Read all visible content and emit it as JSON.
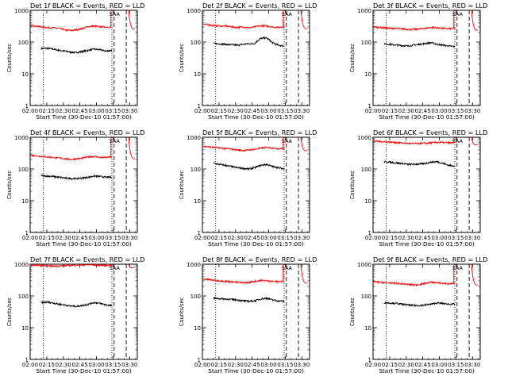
{
  "colors": {
    "events": "#000000",
    "lld": "#ff0000",
    "axes": "#000000",
    "background": "#ffffff"
  },
  "chart_data": [
    {
      "type": "line",
      "title": "Det 1f BLACK = Events, RED = LLD",
      "xlabel": "Start Time (30-Dec-10 01:57:00)",
      "ylabel": "Counts/sec",
      "x_ticks": [
        "02:00",
        "02:15",
        "02:30",
        "02:45",
        "03:00",
        "03:15",
        "03:30"
      ],
      "y_ticks": [
        "1",
        "10",
        "100",
        "1000"
      ],
      "yscale": "log",
      "ylim": [
        1,
        1000
      ],
      "xlim": [
        "02:00",
        "03:37"
      ],
      "annotation": "SAA",
      "dotted_markers": [
        "02:12",
        "03:14"
      ],
      "dashed_markers": [
        "03:16",
        "03:27"
      ],
      "series": [
        {
          "name": "Events",
          "color": "black",
          "values_start": "02:10",
          "values_end": "03:14",
          "values": [
            62,
            64,
            60,
            55,
            52,
            48,
            47,
            50,
            55,
            60,
            57,
            52,
            55
          ]
        },
        {
          "name": "LLD",
          "color": "red",
          "values_start": "02:00",
          "values_end": "03:14",
          "values": [
            330,
            320,
            300,
            285,
            280,
            270,
            240,
            230,
            245,
            270,
            310,
            320,
            300,
            300,
            290
          ]
        }
      ]
    },
    {
      "type": "line",
      "title": "Det 2f BLACK = Events, RED = LLD",
      "xlabel": "Start Time (30-Dec-10 01:57:00)",
      "ylabel": "Counts/sec",
      "x_ticks": [
        "02:00",
        "02:15",
        "02:30",
        "02:45",
        "03:00",
        "03:15",
        "03:30"
      ],
      "y_ticks": [
        "1",
        "10",
        "100",
        "1000"
      ],
      "yscale": "log",
      "ylim": [
        1,
        1000
      ],
      "xlim": [
        "02:00",
        "03:37"
      ],
      "annotation": "SAA",
      "dotted_markers": [
        "02:12",
        "03:14"
      ],
      "dashed_markers": [
        "03:16",
        "03:27"
      ],
      "series": [
        {
          "name": "Events",
          "color": "black",
          "values_start": "02:10",
          "values_end": "03:14",
          "values": [
            90,
            88,
            85,
            82,
            80,
            85,
            88,
            90,
            130,
            135,
            95,
            80,
            75
          ]
        },
        {
          "name": "LLD",
          "color": "red",
          "values_start": "02:00",
          "values_end": "03:14",
          "values": [
            360,
            350,
            330,
            320,
            320,
            300,
            290,
            300,
            280,
            300,
            330,
            320,
            300,
            290,
            300
          ]
        }
      ]
    },
    {
      "type": "line",
      "title": "Det 3f BLACK = Events, RED = LLD",
      "xlabel": "Start Time (30-Dec-10 01:57:00)",
      "ylabel": "Counts/sec",
      "x_ticks": [
        "02:00",
        "02:15",
        "02:30",
        "02:45",
        "03:00",
        "03:15",
        "03:30"
      ],
      "y_ticks": [
        "1",
        "10",
        "100",
        "1000"
      ],
      "yscale": "log",
      "ylim": [
        1,
        1000
      ],
      "xlim": [
        "02:00",
        "03:37"
      ],
      "annotation": "SAA",
      "dotted_markers": [
        "02:12",
        "03:14"
      ],
      "dashed_markers": [
        "03:16",
        "03:27"
      ],
      "series": [
        {
          "name": "Events",
          "color": "black",
          "values_start": "02:10",
          "values_end": "03:14",
          "values": [
            88,
            85,
            80,
            78,
            75,
            80,
            85,
            90,
            95,
            85,
            80,
            75,
            72
          ]
        },
        {
          "name": "LLD",
          "color": "red",
          "values_start": "02:00",
          "values_end": "03:14",
          "values": [
            300,
            290,
            280,
            270,
            270,
            260,
            250,
            250,
            260,
            270,
            290,
            280,
            270,
            260,
            270
          ]
        }
      ]
    },
    {
      "type": "line",
      "title": "Det 4f BLACK = Events, RED = LLD",
      "xlabel": "Start Time (30-Dec-10 01:57:00)",
      "ylabel": "Counts/sec",
      "x_ticks": [
        "02:00",
        "02:15",
        "02:30",
        "02:45",
        "03:00",
        "03:15",
        "03:30"
      ],
      "y_ticks": [
        "1",
        "10",
        "100",
        "1000"
      ],
      "yscale": "log",
      "ylim": [
        1,
        1000
      ],
      "xlim": [
        "02:00",
        "03:37"
      ],
      "annotation": "SAA",
      "dotted_markers": [
        "02:12",
        "03:14"
      ],
      "dashed_markers": [
        "03:16",
        "03:27"
      ],
      "series": [
        {
          "name": "Events",
          "color": "black",
          "values_start": "02:10",
          "values_end": "03:14",
          "values": [
            62,
            60,
            58,
            55,
            52,
            50,
            50,
            52,
            55,
            60,
            58,
            55,
            55
          ]
        },
        {
          "name": "LLD",
          "color": "red",
          "values_start": "02:00",
          "values_end": "03:14",
          "values": [
            270,
            260,
            250,
            240,
            230,
            220,
            210,
            200,
            210,
            220,
            240,
            250,
            230,
            230,
            240
          ]
        }
      ]
    },
    {
      "type": "line",
      "title": "Det 5f BLACK = Events, RED = LLD",
      "xlabel": "Start Time (30-Dec-10 01:57:00)",
      "ylabel": "Counts/sec",
      "x_ticks": [
        "02:00",
        "02:15",
        "02:30",
        "02:45",
        "03:00",
        "03:15",
        "03:30"
      ],
      "y_ticks": [
        "1",
        "10",
        "100",
        "1000"
      ],
      "yscale": "log",
      "ylim": [
        1,
        1000
      ],
      "xlim": [
        "02:00",
        "03:37"
      ],
      "annotation": "SAA",
      "dotted_markers": [
        "02:12",
        "03:14"
      ],
      "dashed_markers": [
        "03:16",
        "03:27"
      ],
      "series": [
        {
          "name": "Events",
          "color": "black",
          "values_start": "02:10",
          "values_end": "03:14",
          "values": [
            150,
            140,
            130,
            120,
            110,
            105,
            100,
            110,
            130,
            140,
            120,
            110,
            100
          ]
        },
        {
          "name": "LLD",
          "color": "red",
          "values_start": "02:00",
          "values_end": "03:14",
          "values": [
            520,
            500,
            480,
            460,
            440,
            420,
            400,
            380,
            400,
            420,
            450,
            480,
            460,
            440,
            430
          ]
        }
      ]
    },
    {
      "type": "line",
      "title": "Det 6f BLACK = Events, RED = LLD",
      "xlabel": "Start Time (30-Dec-10 01:57:00)",
      "ylabel": "Counts/sec",
      "x_ticks": [
        "02:00",
        "02:15",
        "02:30",
        "02:45",
        "03:00",
        "03:15",
        "03:30"
      ],
      "y_ticks": [
        "1",
        "10",
        "100",
        "1000"
      ],
      "yscale": "log",
      "ylim": [
        1,
        1000
      ],
      "xlim": [
        "02:00",
        "03:37"
      ],
      "annotation": "SAA",
      "dotted_markers": [
        "02:12",
        "03:14"
      ],
      "dashed_markers": [
        "03:16",
        "03:27"
      ],
      "series": [
        {
          "name": "Events",
          "color": "black",
          "values_start": "02:10",
          "values_end": "03:14",
          "values": [
            170,
            165,
            155,
            150,
            140,
            140,
            145,
            150,
            165,
            170,
            150,
            130,
            125
          ]
        },
        {
          "name": "LLD",
          "color": "red",
          "values_start": "02:00",
          "values_end": "03:14",
          "values": [
            750,
            740,
            720,
            700,
            680,
            660,
            640,
            630,
            640,
            650,
            670,
            690,
            680,
            670,
            670
          ]
        }
      ]
    },
    {
      "type": "line",
      "title": "Det 7f BLACK = Events, RED = LLD",
      "xlabel": "Start Time (30-Dec-10 01:57:00)",
      "ylabel": "Counts/sec",
      "x_ticks": [
        "02:00",
        "02:15",
        "02:30",
        "02:45",
        "03:00",
        "03:15",
        "03:30"
      ],
      "y_ticks": [
        "1",
        "10",
        "100",
        "1000"
      ],
      "yscale": "log",
      "ylim": [
        1,
        1000
      ],
      "xlim": [
        "02:00",
        "03:37"
      ],
      "annotation": "SAA",
      "dotted_markers": [
        "02:12",
        "03:14"
      ],
      "dashed_markers": [
        "03:16",
        "03:27"
      ],
      "series": [
        {
          "name": "Events",
          "color": "black",
          "values_start": "02:10",
          "values_end": "03:14",
          "values": [
            62,
            64,
            60,
            55,
            52,
            48,
            47,
            50,
            55,
            62,
            58,
            52,
            50
          ]
        },
        {
          "name": "LLD",
          "color": "red",
          "values_start": "02:00",
          "values_end": "03:14",
          "values": [
            950,
            930,
            900,
            880,
            870,
            880,
            900,
            920,
            940,
            950,
            960,
            940,
            930,
            920,
            930
          ]
        }
      ]
    },
    {
      "type": "line",
      "title": "Det 8f BLACK = Events, RED = LLD",
      "xlabel": "Start Time (30-Dec-10 01:57:00)",
      "ylabel": "Counts/sec",
      "x_ticks": [
        "02:00",
        "02:15",
        "02:30",
        "02:45",
        "03:00",
        "03:15",
        "03:30"
      ],
      "y_ticks": [
        "1",
        "10",
        "100",
        "1000"
      ],
      "yscale": "log",
      "ylim": [
        1,
        1000
      ],
      "xlim": [
        "02:00",
        "03:37"
      ],
      "annotation": "SAA",
      "dotted_markers": [
        "02:12",
        "03:14"
      ],
      "dashed_markers": [
        "03:16",
        "03:27"
      ],
      "series": [
        {
          "name": "Events",
          "color": "black",
          "values_start": "02:10",
          "values_end": "03:14",
          "values": [
            85,
            82,
            80,
            78,
            75,
            70,
            68,
            70,
            80,
            85,
            75,
            70,
            68
          ]
        },
        {
          "name": "LLD",
          "color": "red",
          "values_start": "02:00",
          "values_end": "03:14",
          "values": [
            340,
            330,
            310,
            300,
            290,
            280,
            270,
            260,
            270,
            290,
            310,
            300,
            290,
            280,
            290
          ]
        }
      ]
    },
    {
      "type": "line",
      "title": "Det 9f BLACK = Events, RED = LLD",
      "xlabel": "Start Time (30-Dec-10 01:57:00)",
      "ylabel": "Counts/sec",
      "x_ticks": [
        "02:00",
        "02:15",
        "02:30",
        "02:45",
        "03:00",
        "03:15",
        "03:30"
      ],
      "y_ticks": [
        "1",
        "10",
        "100",
        "1000"
      ],
      "yscale": "log",
      "ylim": [
        1,
        1000
      ],
      "xlim": [
        "02:00",
        "03:37"
      ],
      "annotation": "SAA",
      "dotted_markers": [
        "02:12",
        "03:14"
      ],
      "dashed_markers": [
        "03:16",
        "03:27"
      ],
      "series": [
        {
          "name": "Events",
          "color": "black",
          "values_start": "02:10",
          "values_end": "03:14",
          "values": [
            62,
            60,
            58,
            55,
            52,
            50,
            50,
            52,
            55,
            60,
            58,
            55,
            55
          ]
        },
        {
          "name": "LLD",
          "color": "red",
          "values_start": "02:00",
          "values_end": "03:14",
          "values": [
            280,
            270,
            260,
            255,
            250,
            240,
            230,
            220,
            230,
            250,
            270,
            260,
            250,
            240,
            250
          ]
        }
      ]
    }
  ]
}
